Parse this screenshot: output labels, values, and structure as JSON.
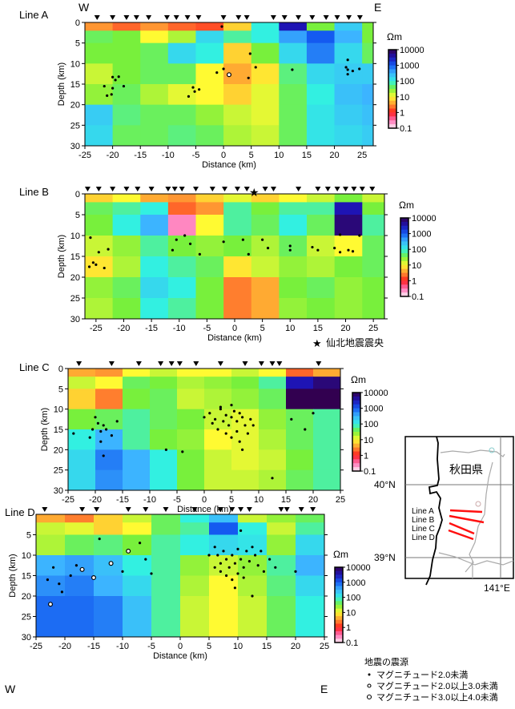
{
  "colors": {
    "epicenter_star": "#ff2020",
    "line_marks": "#ff1010"
  },
  "colorbar": {
    "unit": "Ωm",
    "labels": [
      "10000",
      "1000",
      "100",
      "10",
      "1",
      "0.1"
    ],
    "log_range": [
      -1,
      4
    ]
  },
  "legend": {
    "epicenter": "仙北地震震央",
    "hypocenter_title": "地震の震源",
    "items": [
      "マグニチュード2.0未満",
      "マグニチュード2.0以上3.0未満",
      "マグニチュード3.0以上4.0未満"
    ]
  },
  "map": {
    "prefecture": "秋田県",
    "lat_labels": [
      "40°N",
      "39°N"
    ],
    "lon_label": "141°E",
    "lines": [
      "Line A",
      "Line B",
      "Line C",
      "Line D"
    ]
  },
  "chart_data": [
    {
      "type": "heatmap",
      "title": "Line A",
      "xlabel": "Distance (km)",
      "ylabel": "Depth (km)",
      "left_label": "W",
      "right_label": "E",
      "xlim": [
        -25,
        27
      ],
      "ylim": [
        0,
        30
      ],
      "xticks": [
        -25,
        -20,
        -15,
        -10,
        -5,
        0,
        5,
        10,
        15,
        20,
        25
      ],
      "yticks": [
        0,
        5,
        10,
        15,
        20,
        25,
        30
      ],
      "x_edges": [
        -25,
        -20,
        -15,
        -10,
        -5,
        0,
        5,
        10,
        15,
        20,
        25,
        27
      ],
      "depth_edges": [
        0,
        2,
        5,
        10,
        15,
        20,
        25,
        30
      ],
      "log10_resistivity": [
        [
          0.5,
          0.3,
          0.5,
          0.3,
          0.2,
          0.8,
          2.0,
          3.5,
          1.5,
          2.3,
          1.5
        ],
        [
          1.6,
          1.5,
          1.0,
          1.3,
          2.2,
          1.8,
          2.0,
          2.6,
          3.0,
          2.5,
          1.5
        ],
        [
          1.5,
          1.5,
          1.6,
          2.2,
          2.0,
          0.8,
          1.5,
          2.2,
          2.8,
          2.2,
          1.6
        ],
        [
          1.2,
          1.5,
          1.6,
          1.6,
          1.0,
          0.6,
          0.9,
          1.7,
          2.2,
          2.3,
          2.3
        ],
        [
          1.4,
          1.6,
          1.3,
          1.1,
          1.0,
          0.8,
          1.1,
          1.6,
          2.0,
          2.4,
          2.5
        ],
        [
          2.3,
          1.7,
          1.6,
          1.6,
          1.4,
          1.2,
          1.1,
          1.6,
          2.1,
          2.3,
          2.4
        ],
        [
          2.2,
          1.6,
          1.6,
          1.7,
          1.6,
          1.3,
          1.2,
          1.6,
          2.1,
          2.2,
          2.3
        ]
      ],
      "stations": [
        -22.8,
        -20,
        -17.5,
        -15.7,
        -13.5,
        -10.2,
        -8.5,
        -6.5,
        -4.5,
        0,
        2.7,
        4.2,
        9,
        11,
        13.5,
        16,
        18.5,
        20.5,
        22.6,
        24.6
      ],
      "earthquakes": [
        [
          -20,
          13.3
        ],
        [
          -19.5,
          14
        ],
        [
          -18.9,
          13.2
        ],
        [
          -21.5,
          15.5
        ],
        [
          -20,
          16
        ],
        [
          -18,
          15.5
        ],
        [
          -21,
          17.8
        ],
        [
          -20.2,
          17.5
        ],
        [
          -5.5,
          15.8
        ],
        [
          -5.2,
          16.8
        ],
        [
          -4.4,
          16.3
        ],
        [
          -6.3,
          18
        ],
        [
          -0.3,
          1
        ],
        [
          0,
          11.3
        ],
        [
          -1.2,
          12.2
        ],
        [
          1,
          12.7,
          2
        ],
        [
          4.5,
          13.5
        ],
        [
          4.8,
          7.6
        ],
        [
          5.8,
          10.9
        ],
        [
          12.4,
          11.5
        ],
        [
          22.4,
          9.1
        ],
        [
          22.1,
          10.9
        ],
        [
          22.4,
          11.5
        ],
        [
          23.3,
          11.8
        ],
        [
          22.4,
          12.6
        ],
        [
          24.5,
          11.3
        ]
      ]
    },
    {
      "type": "heatmap",
      "title": "Line B",
      "xlabel": "Distance (km)",
      "ylabel": "Depth (km)",
      "xlim": [
        -27,
        27
      ],
      "ylim": [
        0,
        30
      ],
      "xticks": [
        -25,
        -20,
        -15,
        -10,
        -5,
        0,
        5,
        10,
        15,
        20,
        25
      ],
      "yticks": [
        0,
        5,
        10,
        15,
        20,
        25,
        30
      ],
      "x_edges": [
        -27,
        -22,
        -17,
        -12,
        -7,
        -2,
        3,
        8,
        13,
        18,
        23,
        27
      ],
      "depth_edges": [
        0,
        2,
        5,
        10,
        15,
        20,
        25,
        30
      ],
      "log10_resistivity": [
        [
          0.8,
          1.0,
          0.6,
          0.5,
          0.8,
          1.1,
          0.8,
          1.0,
          1.2,
          1.5,
          1.2
        ],
        [
          1.6,
          1.8,
          2.0,
          0.3,
          0.5,
          1.8,
          1.5,
          1.8,
          1.8,
          3.5,
          1.5
        ],
        [
          1.5,
          2.0,
          2.5,
          -0.6,
          1.0,
          1.8,
          1.6,
          2.0,
          1.6,
          3.8,
          1.8
        ],
        [
          1.2,
          1.4,
          1.8,
          1.5,
          1.4,
          1.5,
          1.3,
          1.6,
          1.2,
          1.0,
          1.6
        ],
        [
          0.9,
          1.3,
          2.0,
          1.8,
          1.6,
          0.9,
          1.2,
          1.4,
          1.3,
          1.5,
          1.6
        ],
        [
          1.4,
          1.6,
          2.2,
          2.0,
          1.5,
          0.4,
          0.6,
          1.5,
          1.6,
          1.4,
          1.5
        ],
        [
          1.3,
          1.5,
          2.0,
          1.8,
          1.5,
          0.4,
          0.6,
          1.4,
          1.5,
          1.4,
          1.5
        ]
      ],
      "stations": [
        -26.5,
        -24.5,
        -22,
        -19.5,
        -17.5,
        -15,
        -12,
        -10.8,
        -9.5,
        -7,
        -4,
        -1.8,
        0.5,
        2.2,
        5.5,
        7,
        11.5,
        15,
        16.8,
        18.5,
        20,
        21.5,
        23,
        24.8
      ],
      "epicenter": [
        3.5,
        0
      ],
      "earthquakes": [
        [
          -26,
          10.5
        ],
        [
          -24.5,
          14
        ],
        [
          -25.5,
          16.5
        ],
        [
          -26.2,
          17.5
        ],
        [
          -25,
          17
        ],
        [
          -23.5,
          17.8
        ],
        [
          -22.8,
          13.3
        ],
        [
          -10.5,
          11
        ],
        [
          -11.2,
          13.5
        ],
        [
          -9,
          10
        ],
        [
          -8,
          12
        ],
        [
          -6.3,
          14.5
        ],
        [
          -2,
          11.5
        ],
        [
          1.5,
          11
        ],
        [
          2.5,
          14.5
        ],
        [
          5,
          11
        ],
        [
          6,
          13
        ],
        [
          10,
          12.5
        ],
        [
          10,
          13.5
        ],
        [
          14,
          12.8
        ],
        [
          15,
          13.5
        ],
        [
          18,
          13
        ],
        [
          19,
          14
        ],
        [
          20.5,
          13.5
        ],
        [
          21.3,
          13.8
        ],
        [
          22.5,
          10
        ],
        [
          19,
          9.8
        ]
      ]
    },
    {
      "type": "heatmap",
      "title": "Line C",
      "xlabel": "Distance (km)",
      "ylabel": "Depth (km)",
      "xlim": [
        -25,
        25
      ],
      "ylim": [
        0,
        30
      ],
      "xticks": [
        -25,
        -20,
        -15,
        -10,
        -5,
        0,
        5,
        10,
        15,
        20,
        25
      ],
      "yticks": [
        0,
        5,
        10,
        15,
        20,
        25,
        30
      ],
      "x_edges": [
        -25,
        -20,
        -15,
        -10,
        -5,
        0,
        5,
        10,
        15,
        20,
        25
      ],
      "depth_edges": [
        0,
        2,
        5,
        10,
        15,
        20,
        25,
        30
      ],
      "log10_resistivity": [
        [
          0.6,
          0.5,
          1.0,
          1.2,
          1.0,
          1.0,
          1.2,
          1.0,
          0.3,
          0.6
        ],
        [
          1.2,
          1.0,
          1.6,
          1.5,
          1.3,
          1.4,
          1.5,
          1.8,
          3.5,
          3.8
        ],
        [
          0.8,
          0.4,
          1.5,
          1.6,
          1.2,
          1.3,
          1.4,
          1.6,
          4.0,
          4.0
        ],
        [
          1.5,
          1.6,
          1.8,
          1.6,
          1.5,
          1.2,
          1.1,
          1.4,
          1.6,
          1.8
        ],
        [
          2.0,
          2.5,
          1.8,
          1.5,
          1.4,
          1.0,
          1.1,
          1.3,
          1.6,
          1.8
        ],
        [
          2.2,
          2.8,
          2.5,
          2.0,
          1.5,
          1.2,
          1.1,
          1.2,
          1.5,
          1.8
        ],
        [
          2.2,
          2.7,
          2.5,
          2.0,
          1.5,
          1.2,
          1.2,
          1.3,
          1.6,
          1.8
        ]
      ],
      "stations": [
        -23,
        -17,
        -12,
        -8,
        -6,
        -4.5,
        -1.5,
        3,
        7.5,
        10.5,
        12.5,
        13.8,
        21
      ],
      "earthquakes": [
        [
          -20,
          12
        ],
        [
          -19.5,
          13.5
        ],
        [
          -18.5,
          14
        ],
        [
          -20.5,
          15
        ],
        [
          -19,
          15.5
        ],
        [
          -18,
          15
        ],
        [
          -21,
          17
        ],
        [
          -19,
          18
        ],
        [
          -24,
          16
        ],
        [
          -17,
          16.5
        ],
        [
          -18.5,
          21.5
        ],
        [
          -16,
          13
        ],
        [
          -7,
          20
        ],
        [
          -4,
          20.5,
          1
        ],
        [
          0,
          12
        ],
        [
          1,
          11
        ],
        [
          2,
          12.5
        ],
        [
          3,
          10
        ],
        [
          3.5,
          13
        ],
        [
          4,
          11.5
        ],
        [
          4.5,
          14
        ],
        [
          5,
          12
        ],
        [
          5.5,
          10.5
        ],
        [
          6,
          13
        ],
        [
          6.5,
          11
        ],
        [
          7,
          12
        ],
        [
          7.5,
          14
        ],
        [
          2.5,
          15
        ],
        [
          4,
          16
        ],
        [
          5,
          17
        ],
        [
          6,
          15.5
        ],
        [
          8,
          16
        ],
        [
          3,
          9.5
        ],
        [
          5,
          9
        ],
        [
          1.5,
          13.5
        ],
        [
          6.5,
          18
        ],
        [
          7,
          20
        ],
        [
          8.5,
          12.5
        ],
        [
          9,
          14
        ],
        [
          12.5,
          27
        ],
        [
          16,
          12.5
        ],
        [
          18.5,
          15
        ],
        [
          20,
          11
        ]
      ]
    },
    {
      "type": "heatmap",
      "title": "Line D",
      "xlabel": "Distance (km)",
      "ylabel": "Depth (km)",
      "left_label": "W",
      "right_label": "E",
      "xlim": [
        -25,
        25
      ],
      "ylim": [
        0,
        30
      ],
      "xticks": [
        -25,
        -20,
        -15,
        -10,
        -5,
        0,
        5,
        10,
        15,
        20,
        25
      ],
      "yticks": [
        5,
        10,
        15,
        20,
        25,
        30
      ],
      "x_edges": [
        -25,
        -20,
        -15,
        -10,
        -5,
        0,
        5,
        10,
        15,
        20,
        25
      ],
      "depth_edges": [
        0,
        2,
        5,
        10,
        15,
        20,
        25,
        30
      ],
      "log10_resistivity": [
        [
          0.6,
          0.4,
          0.8,
          1.2,
          1.6,
          2.0,
          2.4,
          1.2,
          1.4,
          1.6
        ],
        [
          1.2,
          1.1,
          0.8,
          1.0,
          1.6,
          1.8,
          3.0,
          2.0,
          1.2,
          1.8
        ],
        [
          1.3,
          1.6,
          1.7,
          1.5,
          1.8,
          2.0,
          2.2,
          2.1,
          1.4,
          2.2
        ],
        [
          2.5,
          2.6,
          2.4,
          2.0,
          1.8,
          1.4,
          1.2,
          1.4,
          1.8,
          2.5
        ],
        [
          2.7,
          2.8,
          2.5,
          2.2,
          1.8,
          1.3,
          1.0,
          1.3,
          1.7,
          2.2
        ],
        [
          2.9,
          2.9,
          2.8,
          2.4,
          1.8,
          1.2,
          1.0,
          1.2,
          1.6,
          2.0
        ],
        [
          2.9,
          2.9,
          2.8,
          2.4,
          1.8,
          1.2,
          1.0,
          1.2,
          1.6,
          2.0
        ]
      ],
      "stations": [
        -23.5,
        -17,
        -14.5,
        -9,
        -6,
        -2.5,
        2.5,
        7,
        9,
        10.5,
        12,
        17.5,
        18.5,
        21,
        23
      ],
      "earthquakes": [
        [
          -22,
          13
        ],
        [
          -23,
          16
        ],
        [
          -21,
          17
        ],
        [
          -22.5,
          22,
          2
        ],
        [
          -20.5,
          19
        ],
        [
          -18,
          12.5
        ],
        [
          -19,
          15
        ],
        [
          -17,
          13.5,
          2
        ],
        [
          -15,
          15.5,
          2
        ],
        [
          -12,
          12,
          2
        ],
        [
          -10,
          14
        ],
        [
          -9,
          9,
          2
        ],
        [
          -6,
          11
        ],
        [
          -5,
          14.5
        ],
        [
          -14,
          6
        ],
        [
          -7,
          7
        ],
        [
          6,
          8
        ],
        [
          6.5,
          10
        ],
        [
          7,
          12
        ],
        [
          7.5,
          9
        ],
        [
          8,
          11
        ],
        [
          8.5,
          13
        ],
        [
          9,
          10
        ],
        [
          9.5,
          12
        ],
        [
          10,
          8.5
        ],
        [
          10.5,
          11
        ],
        [
          11,
          13
        ],
        [
          11.5,
          9
        ],
        [
          12,
          11.5
        ],
        [
          12.5,
          8
        ],
        [
          13,
          10
        ],
        [
          13.5,
          12.5
        ],
        [
          14,
          9
        ],
        [
          14.5,
          14
        ],
        [
          8,
          15
        ],
        [
          9,
          16
        ],
        [
          10,
          14.5
        ],
        [
          7,
          14
        ],
        [
          6,
          13
        ],
        [
          11,
          15.5
        ],
        [
          15.5,
          11
        ],
        [
          16.5,
          13
        ],
        [
          12.5,
          20
        ],
        [
          9.5,
          18
        ],
        [
          10.5,
          4
        ],
        [
          5,
          10
        ],
        [
          20,
          14
        ]
      ]
    }
  ]
}
